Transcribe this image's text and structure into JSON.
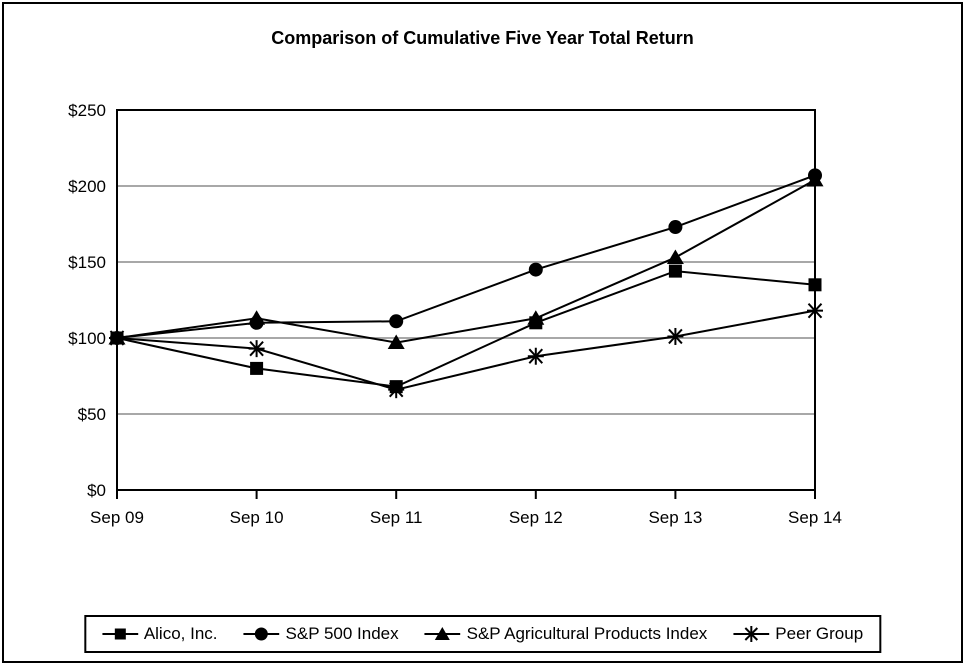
{
  "title": "Comparison of Cumulative Five Year Total Return",
  "y_axis": {
    "tick_labels": [
      "$0",
      "$50",
      "$100",
      "$150",
      "$200",
      "$250"
    ]
  },
  "x_axis": {
    "tick_labels": [
      "Sep 09",
      "Sep 10",
      "Sep 11",
      "Sep 12",
      "Sep 13",
      "Sep 14"
    ]
  },
  "legend": {
    "items": [
      {
        "label": "Alico, Inc.",
        "marker": "square-marker-icon"
      },
      {
        "label": "S&P 500 Index",
        "marker": "circle-marker-icon"
      },
      {
        "label": "S&P Agricultural Products Index",
        "marker": "triangle-marker-icon"
      },
      {
        "label": "Peer Group",
        "marker": "star-marker-icon"
      }
    ]
  },
  "colors": {
    "series": "#000000",
    "grid": "#a8a8a8",
    "frame": "#000000",
    "background": "#ffffff"
  },
  "chart_data": {
    "type": "line",
    "title": "Comparison of Cumulative Five Year Total Return",
    "categories": [
      "Sep 09",
      "Sep 10",
      "Sep 11",
      "Sep 12",
      "Sep 13",
      "Sep 14"
    ],
    "series": [
      {
        "name": "Alico, Inc.",
        "marker": "square",
        "values": [
          100,
          80,
          68,
          110,
          144,
          135
        ]
      },
      {
        "name": "S&P 500 Index",
        "marker": "circle",
        "values": [
          100,
          110,
          111,
          145,
          173,
          207
        ]
      },
      {
        "name": "S&P Agricultural Products Index",
        "marker": "triangle",
        "values": [
          100,
          113,
          97,
          113,
          153,
          204
        ]
      },
      {
        "name": "Peer Group",
        "marker": "star",
        "values": [
          100,
          93,
          66,
          88,
          101,
          118
        ]
      }
    ],
    "xlabel": "",
    "ylabel": "",
    "ylim": [
      0,
      250
    ],
    "ytick_step": 50,
    "grid": true,
    "legend_position": "bottom"
  }
}
